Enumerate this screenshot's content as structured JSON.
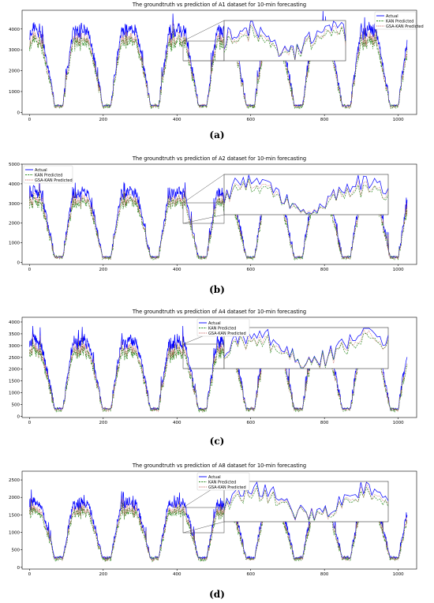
{
  "charts": [
    {
      "label": "(a)",
      "chart_data": {
        "type": "line",
        "title": "The groundtruth vs prediction of A1 dataset for 10-min forecasting",
        "xlabel": "",
        "ylabel": "",
        "xlim": [
          -20,
          1050
        ],
        "ylim": [
          -100,
          4900
        ],
        "xticks": [
          0,
          200,
          400,
          600,
          800,
          1000
        ],
        "yticks": [
          0,
          1000,
          2000,
          3000,
          4000
        ],
        "legend_position": "top-right",
        "series": [
          {
            "name": "Actual",
            "color": "#0000ff",
            "style": "solid"
          },
          {
            "name": "KAN Predicted",
            "color": "#2e8b22",
            "style": "dashed"
          },
          {
            "name": "GSA-KAN Predicted",
            "color": "#c0504d",
            "style": "dotted"
          }
        ],
        "inset": {
          "x_range": [
            420,
            460
          ],
          "y_range": [
            2500,
            3500
          ]
        },
        "profile": {
          "peak": 4100,
          "trough": 300,
          "period": 130
        }
      }
    },
    {
      "label": "(b)",
      "chart_data": {
        "type": "line",
        "title": "The groundtruth vs prediction of A2 dataset for 10-min forecasting",
        "xlabel": "",
        "ylabel": "",
        "xlim": [
          -20,
          1050
        ],
        "ylim": [
          -100,
          5000
        ],
        "xticks": [
          0,
          200,
          400,
          600,
          800,
          1000
        ],
        "yticks": [
          0,
          1000,
          2000,
          3000,
          4000,
          5000
        ],
        "legend_position": "top-left",
        "series": [
          {
            "name": "Actual",
            "color": "#0000ff",
            "style": "solid"
          },
          {
            "name": "KAN Predicted",
            "color": "#2e8b22",
            "style": "dashed"
          },
          {
            "name": "GSA-KAN Predicted",
            "color": "#c0504d",
            "style": "dotted"
          }
        ],
        "inset": {
          "x_range": [
            420,
            460
          ],
          "y_range": [
            2000,
            3000
          ]
        },
        "profile": {
          "peak": 3700,
          "trough": 250,
          "period": 130
        }
      }
    },
    {
      "label": "(c)",
      "chart_data": {
        "type": "line",
        "title": "The groundtruth vs prediction of A4 dataset for 10-min forecasting",
        "xlabel": "",
        "ylabel": "",
        "xlim": [
          -20,
          1050
        ],
        "ylim": [
          -50,
          4200
        ],
        "xticks": [
          0,
          200,
          400,
          600,
          800,
          1000
        ],
        "yticks": [
          0,
          500,
          1000,
          1500,
          2000,
          2500,
          3000,
          3500,
          4000
        ],
        "legend_position": "top-center",
        "series": [
          {
            "name": "Actual",
            "color": "#0000ff",
            "style": "solid"
          },
          {
            "name": "KAN Predicted",
            "color": "#2e8b22",
            "style": "dashed"
          },
          {
            "name": "GSA-KAN Predicted",
            "color": "#c0504d",
            "style": "dotted"
          }
        ],
        "inset": {
          "x_range": [
            420,
            460
          ],
          "y_range": [
            2200,
            3200
          ]
        },
        "profile": {
          "peak": 3300,
          "trough": 300,
          "period": 130
        }
      }
    },
    {
      "label": "(d)",
      "chart_data": {
        "type": "line",
        "title": "The groundtruth vs prediction of A8 dataset for 10-min forecasting",
        "xlabel": "",
        "ylabel": "",
        "xlim": [
          -20,
          1050
        ],
        "ylim": [
          -50,
          2750
        ],
        "xticks": [
          0,
          200,
          400,
          600,
          800,
          1000
        ],
        "yticks": [
          0,
          500,
          1000,
          1500,
          2000,
          2500
        ],
        "legend_position": "top-center",
        "series": [
          {
            "name": "Actual",
            "color": "#0000ff",
            "style": "solid"
          },
          {
            "name": "KAN Predicted",
            "color": "#2e8b22",
            "style": "dashed"
          },
          {
            "name": "GSA-KAN Predicted",
            "color": "#c0504d",
            "style": "dotted"
          }
        ],
        "inset": {
          "x_range": [
            420,
            460
          ],
          "y_range": [
            1000,
            1600
          ]
        },
        "profile": {
          "peak": 1900,
          "trough": 250,
          "period": 130
        }
      }
    }
  ]
}
